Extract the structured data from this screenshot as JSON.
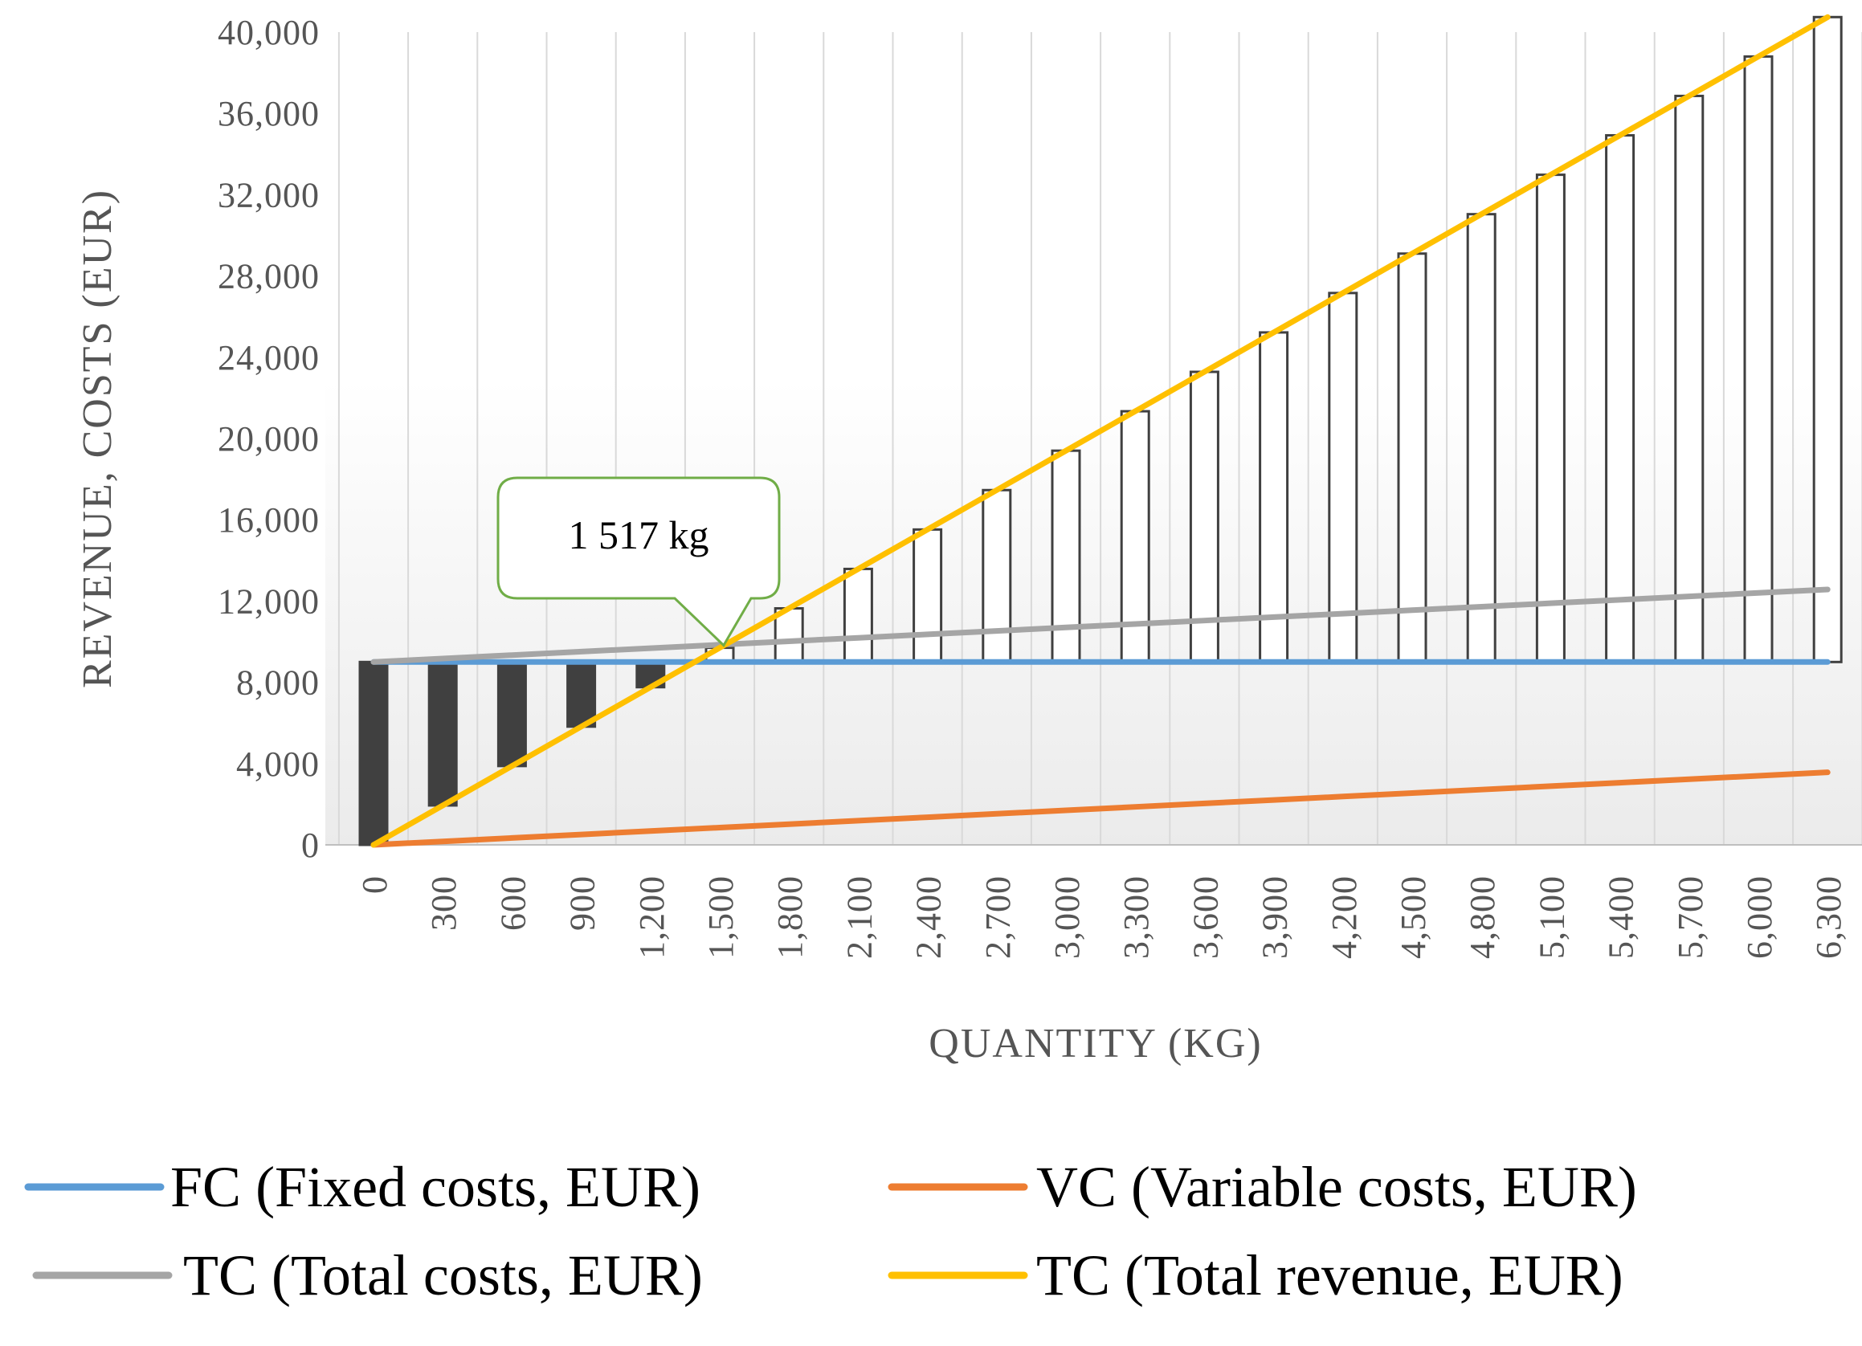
{
  "chart_data": {
    "type": "line+waterfall",
    "xlabel": "QUANTITY (KG)",
    "ylabel": "REVENUE, COSTS (EUR)",
    "ylim": [
      0,
      40000
    ],
    "yticks": [
      0,
      4000,
      8000,
      12000,
      16000,
      20000,
      24000,
      28000,
      32000,
      36000,
      40000
    ],
    "ytick_labels": [
      "0",
      "4,000",
      "8,000",
      "12,000",
      "16,000",
      "20,000",
      "24,000",
      "28,000",
      "32,000",
      "36,000",
      "40,000"
    ],
    "categories": [
      "0",
      "300",
      "600",
      "900",
      "1,200",
      "1,500",
      "1,800",
      "2,100",
      "2,400",
      "2,700",
      "3,000",
      "3,300",
      "3,600",
      "3,900",
      "4,200",
      "4,500",
      "4,800",
      "5,100",
      "5,400",
      "5,700",
      "6,000",
      "6,300"
    ],
    "x": [
      0,
      300,
      600,
      900,
      1200,
      1500,
      1800,
      2100,
      2400,
      2700,
      3000,
      3300,
      3600,
      3900,
      4200,
      4500,
      4800,
      5100,
      5400,
      5700,
      6000,
      6300
    ],
    "series": [
      {
        "name": "FC (Fixed costs, EUR)",
        "color": "#5B9BD5",
        "values": [
          9000,
          9000,
          9000,
          9000,
          9000,
          9000,
          9000,
          9000,
          9000,
          9000,
          9000,
          9000,
          9000,
          9000,
          9000,
          9000,
          9000,
          9000,
          9000,
          9000,
          9000,
          9000
        ]
      },
      {
        "name": "VC (Variable costs, EUR)",
        "color": "#ED7D31",
        "values": [
          0,
          170,
          340,
          510,
          680,
          850,
          1020,
          1190,
          1360,
          1530,
          1700,
          1870,
          2040,
          2210,
          2380,
          2550,
          2720,
          2890,
          3060,
          3230,
          3400,
          3570
        ]
      },
      {
        "name": "TC (Total costs, EUR)",
        "color": "#A5A5A5",
        "values": [
          9000,
          9170,
          9340,
          9510,
          9680,
          9850,
          10020,
          10190,
          10360,
          10530,
          10700,
          10870,
          11040,
          11210,
          11380,
          11550,
          11720,
          11890,
          12060,
          12230,
          12400,
          12570
        ]
      },
      {
        "name": "TC (Total revenue, EUR)",
        "color": "#FFC000",
        "values": [
          0,
          1940,
          3880,
          5820,
          7760,
          9700,
          11640,
          13580,
          15520,
          17460,
          19400,
          21340,
          23280,
          25220,
          27160,
          29100,
          31040,
          32980,
          34920,
          36860,
          38800,
          40740
        ]
      }
    ],
    "bars": {
      "description": "floating bars from fixed costs to total revenue",
      "base": 9000,
      "loss_color": "#404040",
      "profit_color": "#FFFFFF"
    },
    "annotation": {
      "text": "1 517 kg",
      "x": 1517,
      "y": 9820,
      "color": "#70AD47"
    },
    "legend": {
      "position": "bottom",
      "items": [
        {
          "label": "FC (Fixed costs, EUR)",
          "color": "#5B9BD5"
        },
        {
          "label": "VC (Variable costs, EUR)",
          "color": "#ED7D31"
        },
        {
          "label": "TC (Total costs, EUR)",
          "color": "#A5A5A5"
        },
        {
          "label": "TC (Total revenue, EUR)",
          "color": "#FFC000"
        }
      ]
    }
  }
}
